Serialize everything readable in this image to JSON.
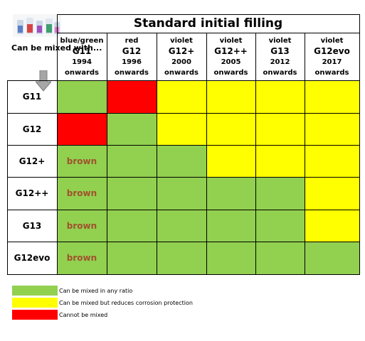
{
  "title": "Standard initial filling",
  "corner_label": "Can be mixed with...",
  "colors": {
    "green": "#92d050",
    "yellow": "#ffff00",
    "red": "#ff0000",
    "brown_text": "#a0522d"
  },
  "columns": [
    {
      "color": "blue/green",
      "name": "G11",
      "year": "1994",
      "note": "onwards"
    },
    {
      "color": "red",
      "name": "G12",
      "year": "1996",
      "note": "onwards"
    },
    {
      "color": "violet",
      "name": "G12+",
      "year": "2000",
      "note": "onwards"
    },
    {
      "color": "violet",
      "name": "G12++",
      "year": "2005",
      "note": "onwards"
    },
    {
      "color": "violet",
      "name": "G13",
      "year": "2012",
      "note": "onwards"
    },
    {
      "color": "violet",
      "name": "G12evo",
      "year": "2017",
      "note": "onwards"
    }
  ],
  "rows": [
    {
      "label": "G11",
      "cells": [
        {
          "status": "green",
          "text": ""
        },
        {
          "status": "red",
          "text": ""
        },
        {
          "status": "yellow",
          "text": ""
        },
        {
          "status": "yellow",
          "text": ""
        },
        {
          "status": "yellow",
          "text": ""
        },
        {
          "status": "yellow",
          "text": ""
        }
      ]
    },
    {
      "label": "G12",
      "cells": [
        {
          "status": "red",
          "text": ""
        },
        {
          "status": "green",
          "text": ""
        },
        {
          "status": "yellow",
          "text": ""
        },
        {
          "status": "yellow",
          "text": ""
        },
        {
          "status": "yellow",
          "text": ""
        },
        {
          "status": "yellow",
          "text": ""
        }
      ]
    },
    {
      "label": "G12+",
      "cells": [
        {
          "status": "green",
          "text": "brown"
        },
        {
          "status": "green",
          "text": ""
        },
        {
          "status": "green",
          "text": ""
        },
        {
          "status": "yellow",
          "text": ""
        },
        {
          "status": "yellow",
          "text": ""
        },
        {
          "status": "yellow",
          "text": ""
        }
      ]
    },
    {
      "label": "G12++",
      "cells": [
        {
          "status": "green",
          "text": "brown"
        },
        {
          "status": "green",
          "text": ""
        },
        {
          "status": "green",
          "text": ""
        },
        {
          "status": "green",
          "text": ""
        },
        {
          "status": "green",
          "text": ""
        },
        {
          "status": "yellow",
          "text": ""
        }
      ]
    },
    {
      "label": "G13",
      "cells": [
        {
          "status": "green",
          "text": "brown"
        },
        {
          "status": "green",
          "text": ""
        },
        {
          "status": "green",
          "text": ""
        },
        {
          "status": "green",
          "text": ""
        },
        {
          "status": "green",
          "text": ""
        },
        {
          "status": "yellow",
          "text": ""
        }
      ]
    },
    {
      "label": "G12evo",
      "cells": [
        {
          "status": "green",
          "text": "brown"
        },
        {
          "status": "green",
          "text": ""
        },
        {
          "status": "green",
          "text": ""
        },
        {
          "status": "green",
          "text": ""
        },
        {
          "status": "green",
          "text": ""
        },
        {
          "status": "green",
          "text": ""
        }
      ]
    }
  ],
  "legend": [
    {
      "status": "green",
      "label": "Can be mixed in any ratio"
    },
    {
      "status": "yellow",
      "label": "Can be mixed but reduces corrosion protection"
    },
    {
      "status": "red",
      "label": "Cannot be mixed"
    }
  ]
}
